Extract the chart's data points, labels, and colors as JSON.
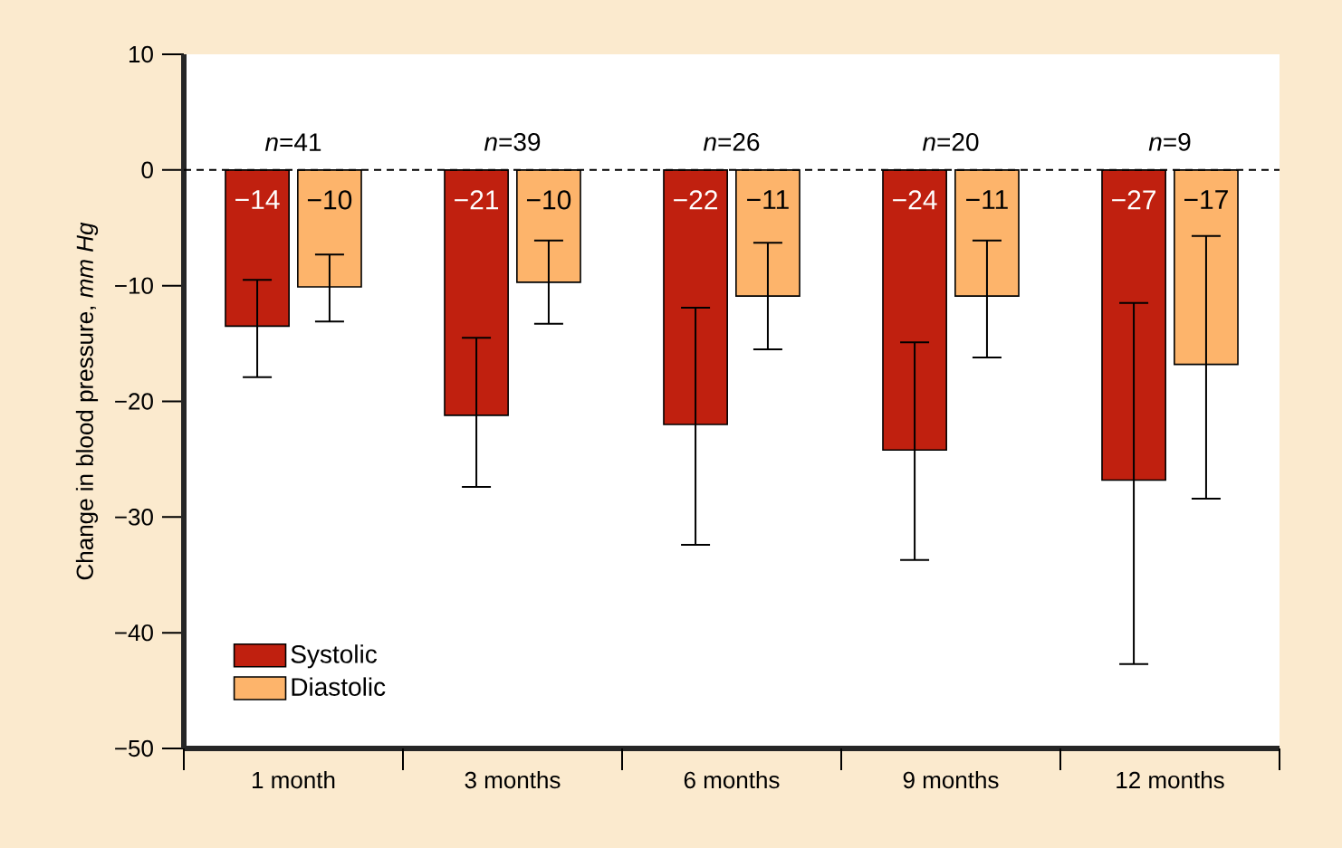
{
  "chart_data": {
    "type": "bar",
    "ylabel": "Change in blood pressure, *mm Hg*",
    "categories": [
      "1 month",
      "3 months",
      "6 months",
      "9 months",
      "12 months"
    ],
    "series": [
      {
        "name": "Systolic",
        "color": "#c0200f",
        "values": [
          -13.5,
          -21.2,
          -22.0,
          -24.2,
          -26.8
        ],
        "errors": [
          [
            -17.9,
            -9.5
          ],
          [
            -27.4,
            -14.5
          ],
          [
            -32.4,
            -11.9
          ],
          [
            -33.7,
            -14.9
          ],
          [
            -42.7,
            -11.5
          ]
        ],
        "value_labels": [
          "−14",
          "−21",
          "−22",
          "−24",
          "−27"
        ]
      },
      {
        "name": "Diastolic",
        "color": "#fdb46b",
        "values": [
          -10.1,
          -9.7,
          -10.9,
          -10.9,
          -16.8
        ],
        "errors": [
          [
            -13.1,
            -7.3
          ],
          [
            -13.3,
            -6.1
          ],
          [
            -15.5,
            -6.3
          ],
          [
            -16.2,
            -6.1
          ],
          [
            -28.4,
            -5.7
          ]
        ],
        "value_labels": [
          "−10",
          "−10",
          "−11",
          "−11",
          "−17"
        ]
      }
    ],
    "ylim": [
      -50,
      10
    ],
    "yticks": [
      10,
      0,
      {
        "value": -10,
        "label": "−10"
      },
      {
        "value": -20,
        "label": "−20"
      },
      {
        "value": -30,
        "label": "−30"
      },
      {
        "value": -40,
        "label": "−40"
      },
      {
        "value": -50,
        "label": "−50"
      }
    ],
    "ref_lines": [
      {
        "axis": "y",
        "value": 0,
        "line_style": "dashed",
        "color": "#000000"
      }
    ],
    "annotations": [
      "*n*=41",
      "*n*=39",
      "*n*=26",
      "*n*=20",
      "*n*=9"
    ],
    "legend": "bottom left",
    "grid": false
  }
}
